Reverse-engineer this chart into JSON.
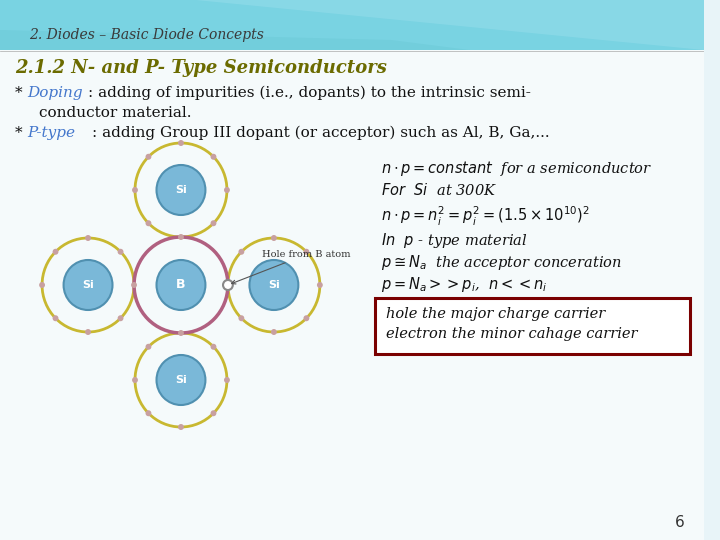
{
  "bg_color": "#f0f8fa",
  "header_bg_top": "#5bc8d8",
  "header_bg_bottom": "#ffffff",
  "title_text": "2. Diodes – Basic Diode Concepts",
  "title_color": "#4a4a4a",
  "heading_text": "2.1.2 N- and P- Type Semiconductors",
  "heading_color": "#6b6b00",
  "doping_color": "#4477cc",
  "ptype_color": "#4477cc",
  "page_number": "6",
  "box_border_color": "#7a0000",
  "box_fill_color": "#ffffff",
  "box_line1": "hole the major charge carrier",
  "box_line2": "electron the minor cahage carrier",
  "wave_color1": "#5ec8d8",
  "wave_color2": "#80d8e8",
  "wave_color3": "#a0e0ee",
  "main_bg": "#f5fafb",
  "si_fill": "#7ab8d8",
  "b_fill": "#7ab8d8",
  "outer_ring": "#c8b830",
  "b_ring": "#b06080",
  "atom_edge": "#5090b0",
  "dot_color": "#c8a0a0"
}
